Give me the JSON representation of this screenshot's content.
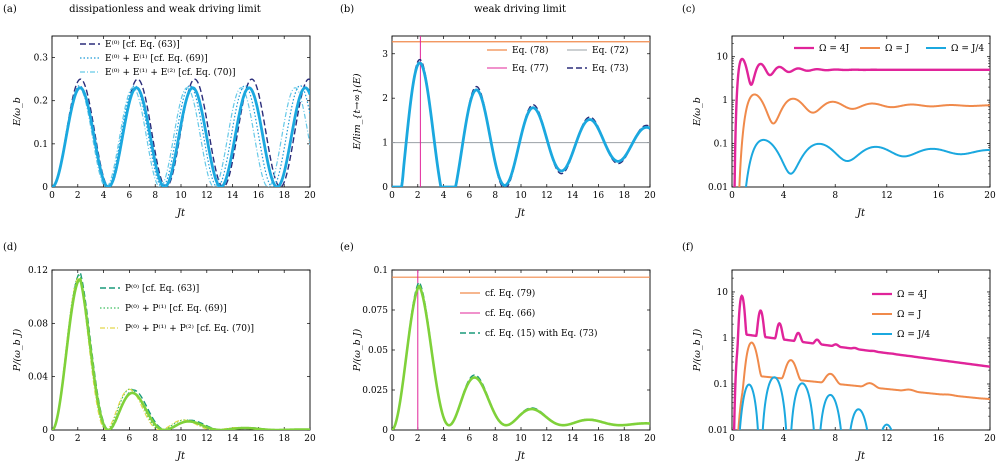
{
  "chart_data": [
    {
      "label": "(a)",
      "title": "dissipationless and weak driving limit",
      "type": "line",
      "xlabel": "Jt",
      "ylabel": "E/ω_b",
      "xlim": [
        0,
        20
      ],
      "ylim": [
        0,
        0.35
      ],
      "yscale": "linear",
      "xticks": [
        "0",
        "2",
        "4",
        "6",
        "8",
        "10",
        "12",
        "14",
        "16",
        "18",
        "20"
      ],
      "yticks": [
        {
          "v": 0,
          "t": "0"
        },
        {
          "v": 0.1,
          "t": "0.1"
        },
        {
          "v": 0.2,
          "t": "0.2"
        },
        {
          "v": 0.3,
          "t": "0.3"
        }
      ],
      "legend_pos": "top-left",
      "series": [
        {
          "name": "E⁽⁰⁾ [cf. Eq. (63)]",
          "color": "#2b2d7a",
          "dash": "6,3",
          "width": 1.4,
          "gen": {
            "kind": "sin2",
            "amp": 0.25,
            "w": 0.71
          }
        },
        {
          "name": "E⁽⁰⁾ + E⁽¹⁾ [cf. Eq. (69)]",
          "color": "#1f9bd7",
          "dash": "1.5,2",
          "width": 1.2,
          "gen": {
            "kind": "sin2",
            "amp": 0.235,
            "w": 0.735
          }
        },
        {
          "name": "E⁽⁰⁾ + E⁽¹⁾ + E⁽²⁾ [cf. Eq. (70)]",
          "color": "#66c9e8",
          "dash": "5,2,1,2",
          "width": 1.2,
          "gen": {
            "kind": "sin2",
            "amp": 0.23,
            "w": 0.75
          }
        },
        {
          "name": "",
          "color": "#1ba8df",
          "dash": "",
          "width": 2.8,
          "gen": {
            "kind": "sin2",
            "amp": 0.23,
            "w": 0.72
          }
        }
      ]
    },
    {
      "label": "(b)",
      "title": "weak driving limit",
      "type": "line",
      "xlabel": "Jt",
      "ylabel": "E/lim_{t→∞}(E)",
      "xlim": [
        0,
        20
      ],
      "ylim": [
        0,
        3.4
      ],
      "yscale": "linear",
      "xticks": [
        "0",
        "2",
        "4",
        "6",
        "8",
        "10",
        "12",
        "14",
        "16",
        "18",
        "20"
      ],
      "yticks": [
        {
          "v": 0,
          "t": "0"
        },
        {
          "v": 1,
          "t": "1"
        },
        {
          "v": 2,
          "t": "2"
        },
        {
          "v": 3,
          "t": "3"
        }
      ],
      "legend_pos": "top-right",
      "legend_cols": 2,
      "series": [
        {
          "name": "Eq. (78)",
          "color": "#f08a4b",
          "dash": "",
          "width": 1.2,
          "gen": {
            "kind": "hline",
            "y": 3.27
          }
        },
        {
          "name": "Eq. (72)",
          "color": "#9aa0a6",
          "dash": "",
          "width": 1.0,
          "gen": {
            "kind": "hline",
            "y": 1.0
          }
        },
        {
          "name": "Eq. (77)",
          "color": "#e0249a",
          "dash": "",
          "width": 1.0,
          "gen": {
            "kind": "vline",
            "x": 2.2
          }
        },
        {
          "name": "Eq. (73)",
          "color": "#2b2d7a",
          "dash": "6,3",
          "width": 1.4,
          "gen": {
            "kind": "damped",
            "A": 2.27,
            "gamma": 0.0895,
            "w": 1.43,
            "phi": -1.57,
            "c": 1.0,
            "onset": 0.9
          }
        },
        {
          "name": "",
          "color": "#1ba8df",
          "dash": "",
          "width": 2.8,
          "gen": {
            "kind": "damped",
            "A": 2.2,
            "gamma": 0.094,
            "w": 1.43,
            "phi": -1.57,
            "c": 1.0,
            "onset": 0.9
          }
        }
      ]
    },
    {
      "label": "(c)",
      "title": "",
      "type": "line",
      "xlabel": "Jt",
      "ylabel": "E/ω_b",
      "xlim": [
        0,
        20
      ],
      "ylim": [
        0.01,
        30
      ],
      "yscale": "log",
      "xticks": [
        "0",
        "4",
        "8",
        "12",
        "16",
        "20"
      ],
      "yticks": [
        {
          "v": 0.01,
          "t": "0.01"
        },
        {
          "v": 0.1,
          "t": "0.1"
        },
        {
          "v": 1,
          "t": "1"
        },
        {
          "v": 10,
          "t": "10"
        }
      ],
      "legend_pos": "top-right",
      "legend_cols": 3,
      "series": [
        {
          "name": "Ω = 4J",
          "color": "#e0249a",
          "dash": "",
          "width": 2.4,
          "gen": {
            "kind": "logosc",
            "base": 5.0,
            "A": 1.25,
            "gamma": 0.55,
            "w": 4.3,
            "onset": 0.35
          }
        },
        {
          "name": "Ω = J",
          "color": "#f08a4b",
          "dash": "",
          "width": 2.0,
          "gen": {
            "kind": "logosc",
            "base": 0.75,
            "A": 1.4,
            "gamma": 0.22,
            "w": 2.05,
            "onset": 0.8
          }
        },
        {
          "name": "Ω = J/4",
          "color": "#1ba8df",
          "dash": "",
          "width": 2.0,
          "gen": {
            "kind": "logosc",
            "base": 0.065,
            "A": 2.0,
            "gamma": 0.13,
            "w": 1.43,
            "onset": 1.1
          }
        }
      ]
    },
    {
      "label": "(d)",
      "title": "",
      "type": "line",
      "xlabel": "Jt",
      "ylabel": "P/(ω_b J)",
      "xlim": [
        0,
        20
      ],
      "ylim": [
        0,
        0.12
      ],
      "yscale": "linear",
      "xticks": [
        "0",
        "2",
        "4",
        "6",
        "8",
        "10",
        "12",
        "14",
        "16",
        "18",
        "20"
      ],
      "yticks": [
        {
          "v": 0,
          "t": "0"
        },
        {
          "v": 0.04,
          "t": "0.04"
        },
        {
          "v": 0.08,
          "t": "0.08"
        },
        {
          "v": 0.12,
          "t": "0.12"
        }
      ],
      "legend_pos": "top-right",
      "series": [
        {
          "name": "P⁽⁰⁾ [cf. Eq. (63)]",
          "color": "#1a9a7a",
          "dash": "6,3",
          "width": 1.4,
          "gen": {
            "kind": "pulse",
            "amp": 0.118,
            "decay": 0.32,
            "w": 0.71
          }
        },
        {
          "name": "P⁽⁰⁾ + P⁽¹⁾ [cf. Eq. (69)]",
          "color": "#3fbf60",
          "dash": "1.5,2",
          "width": 1.2,
          "gen": {
            "kind": "pulse",
            "amp": 0.116,
            "decay": 0.33,
            "w": 0.74
          }
        },
        {
          "name": "P⁽⁰⁾ + P⁽¹⁾ + P⁽²⁾ [cf. Eq. (70)]",
          "color": "#e3d84a",
          "dash": "5,2,1,2",
          "width": 1.2,
          "gen": {
            "kind": "pulse",
            "amp": 0.114,
            "decay": 0.335,
            "w": 0.75
          }
        },
        {
          "name": "",
          "color": "#7fd13a",
          "dash": "",
          "width": 2.6,
          "gen": {
            "kind": "pulse",
            "amp": 0.113,
            "decay": 0.335,
            "w": 0.72
          }
        }
      ]
    },
    {
      "label": "(e)",
      "title": "",
      "type": "line",
      "xlabel": "Jt",
      "ylabel": "P/(ω_b J)",
      "xlim": [
        0,
        20
      ],
      "ylim": [
        0,
        0.1
      ],
      "yscale": "linear",
      "xticks": [
        "0",
        "2",
        "4",
        "6",
        "8",
        "10",
        "12",
        "14",
        "16",
        "18",
        "20"
      ],
      "yticks": [
        {
          "v": 0,
          "t": "0"
        },
        {
          "v": 0.025,
          "t": "0.025"
        },
        {
          "v": 0.05,
          "t": "0.05"
        },
        {
          "v": 0.075,
          "t": "0.075"
        },
        {
          "v": 0.1,
          "t": "0.1"
        }
      ],
      "legend_pos": "top-right",
      "series": [
        {
          "name": "cf. Eq. (79)",
          "color": "#f08a4b",
          "dash": "",
          "width": 1.2,
          "gen": {
            "kind": "hline",
            "y": 0.0955
          }
        },
        {
          "name": "cf. Eq. (66)",
          "color": "#e0249a",
          "dash": "",
          "width": 1.0,
          "gen": {
            "kind": "vline",
            "x": 2.0
          }
        },
        {
          "name": "cf. Eq. (15) with Eq. (73)",
          "color": "#1a9a7a",
          "dash": "6,3",
          "width": 1.4,
          "gen": {
            "kind": "pulse2",
            "amp": 0.0905,
            "decay": 0.24,
            "w": 0.71,
            "c": 0.003
          }
        },
        {
          "name": "",
          "color": "#7fd13a",
          "dash": "",
          "width": 2.6,
          "gen": {
            "kind": "pulse2",
            "amp": 0.088,
            "decay": 0.245,
            "w": 0.71,
            "c": 0.003
          }
        }
      ]
    },
    {
      "label": "(f)",
      "title": "",
      "type": "line",
      "xlabel": "Jt",
      "ylabel": "P/(ω_b J)",
      "xlim": [
        0,
        20
      ],
      "ylim": [
        0.01,
        30
      ],
      "yscale": "log",
      "xticks": [
        "0",
        "4",
        "8",
        "12",
        "16",
        "20"
      ],
      "yticks": [
        {
          "v": 0.01,
          "t": "0.01"
        },
        {
          "v": 0.1,
          "t": "0.1"
        },
        {
          "v": 1,
          "t": "1"
        },
        {
          "v": 10,
          "t": "10"
        }
      ],
      "legend_pos": "top-right",
      "series": [
        {
          "name": "Ω = 4J",
          "color": "#e0249a",
          "dash": "",
          "width": 2.4,
          "gen": {
            "kind": "plog",
            "base": 1.3,
            "slope": 0.085,
            "A": 9.0,
            "gamma": 0.55,
            "w": 4.3,
            "onset": 0.35
          }
        },
        {
          "name": "Ω = J",
          "color": "#f08a4b",
          "dash": "",
          "width": 2.0,
          "gen": {
            "kind": "plog",
            "base": 0.17,
            "slope": 0.065,
            "A": 7.0,
            "gamma": 0.32,
            "w": 2.05,
            "onset": 0.7
          }
        },
        {
          "name": "Ω = J/4",
          "color": "#1ba8df",
          "dash": "",
          "width": 2.0,
          "gen": {
            "kind": "plogdecay",
            "A": 0.22,
            "gamma": 0.36,
            "w": 1.43,
            "onset": 0.9
          }
        }
      ]
    }
  ]
}
